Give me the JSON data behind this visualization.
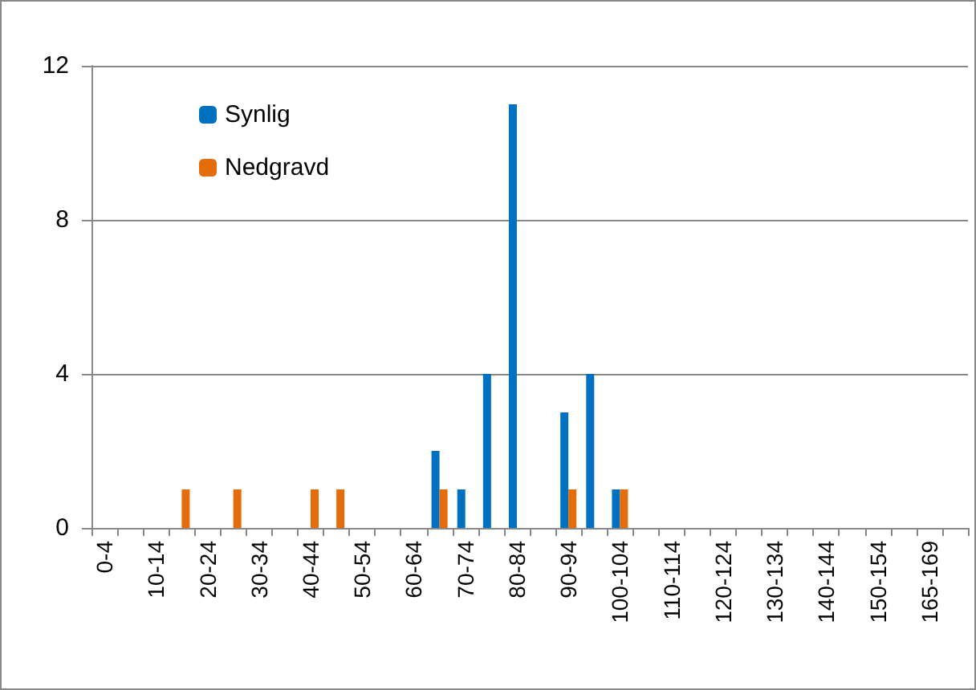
{
  "chart_data": {
    "type": "bar",
    "categories": [
      "0-4",
      null,
      "10-14",
      null,
      "20-24",
      null,
      "30-34",
      null,
      "40-44",
      null,
      "50-54",
      null,
      "60-64",
      null,
      "70-74",
      null,
      "80-84",
      null,
      "90-94",
      null,
      "100-104",
      null,
      "110-114",
      null,
      "120-124",
      null,
      "130-134",
      null,
      "140-144",
      null,
      "150-154",
      null,
      "165-169",
      null
    ],
    "series": [
      {
        "name": "Synlig",
        "color": "#0070c0",
        "values": [
          0,
          0,
          0,
          0,
          0,
          0,
          0,
          0,
          0,
          0,
          0,
          0,
          0,
          2,
          1,
          4,
          11,
          0,
          3,
          4,
          1,
          0,
          0,
          0,
          0,
          0,
          0,
          0,
          0,
          0,
          0,
          0,
          0,
          0
        ]
      },
      {
        "name": "Nedgravd",
        "color": "#e46c0a",
        "values": [
          0,
          0,
          0,
          1,
          0,
          1,
          0,
          0,
          1,
          1,
          0,
          0,
          0,
          1,
          0,
          0,
          0,
          0,
          1,
          0,
          1,
          0,
          0,
          0,
          0,
          0,
          0,
          0,
          0,
          0,
          0,
          0,
          0,
          0
        ]
      }
    ],
    "ylim": [
      0,
      12
    ],
    "yticks": [
      0,
      4,
      8,
      12
    ],
    "grid": "y",
    "legend": "top left"
  }
}
